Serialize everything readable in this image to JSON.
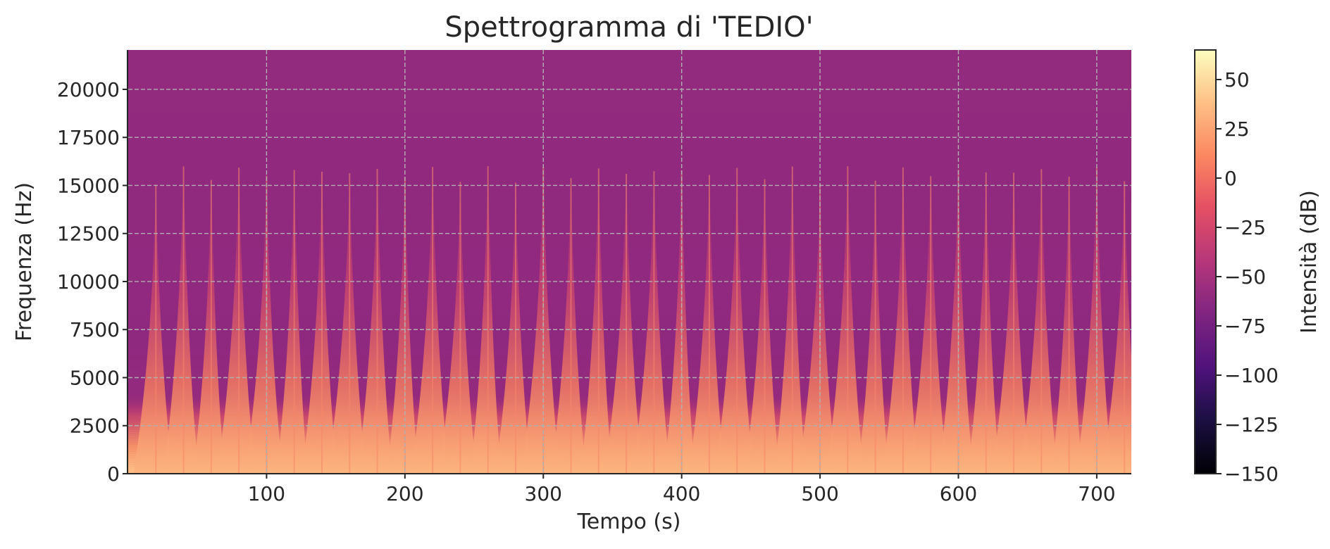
{
  "chart_data": {
    "type": "heatmap",
    "title": "Spettrogramma di 'TEDIO'",
    "xlabel": "Tempo (s)",
    "ylabel": "Frequenza (Hz)",
    "xlim": [
      0,
      725
    ],
    "ylim": [
      0,
      22050
    ],
    "x_ticks": [
      100,
      200,
      300,
      400,
      500,
      600,
      700
    ],
    "x_tick_labels": [
      "100",
      "200",
      "300",
      "400",
      "500",
      "600",
      "700"
    ],
    "y_ticks": [
      0,
      2500,
      5000,
      7500,
      10000,
      12500,
      15000,
      17500,
      20000
    ],
    "y_tick_labels": [
      "0",
      "2500",
      "5000",
      "7500",
      "10000",
      "12500",
      "15000",
      "17500",
      "20000"
    ],
    "grid": true,
    "colormap": "magma",
    "colorbar": {
      "label": "Intensità (dB)",
      "range": [
        -150,
        65
      ],
      "ticks": [
        -150,
        -125,
        -100,
        -75,
        -50,
        -25,
        0,
        25,
        50
      ],
      "tick_labels": [
        "−150",
        "−125",
        "−100",
        "−75",
        "−50",
        "−25",
        "0",
        "25",
        "50"
      ]
    },
    "background_level_db": -45,
    "onsets_s": [
      20,
      40,
      60,
      80,
      100,
      120,
      140,
      160,
      180,
      200,
      220,
      240,
      260,
      280,
      300,
      320,
      340,
      360,
      380,
      400,
      420,
      440,
      460,
      480,
      500,
      520,
      540,
      560,
      580,
      600,
      620,
      640,
      660,
      680,
      700,
      720
    ],
    "onset_peak_frequency_hz": 16000,
    "dense_energy_band_hz": [
      0,
      2500
    ]
  }
}
